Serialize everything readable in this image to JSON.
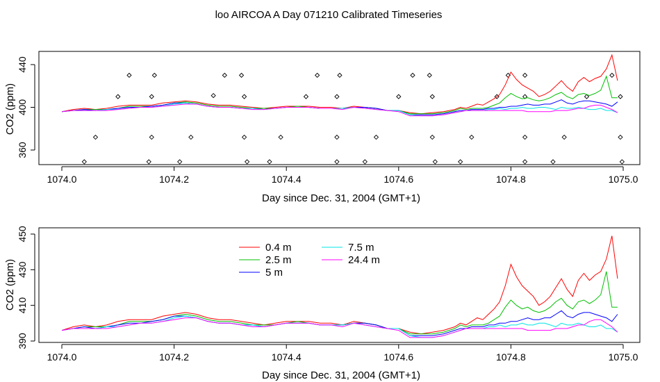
{
  "title": "loo AIRCOA A  Day 071210  Calibrated Timeseries",
  "colors": {
    "0.4 m": "#ff0000",
    "2.5 m": "#00c000",
    "5 m": "#0000ff",
    "7.5 m": "#00e5e5",
    "24.4 m": "#ff00ff"
  },
  "chart_data": [
    {
      "type": "line",
      "panel": "top",
      "xlabel": "Day since Dec. 31, 2004 (GMT+1)",
      "ylabel": "CO2 (ppm)",
      "xlim": [
        1074.0,
        1075.0
      ],
      "ylim": [
        346,
        452
      ],
      "xticks": [
        "1074.0",
        "1074.2",
        "1074.4",
        "1074.6",
        "1074.8",
        "1075.0"
      ],
      "yticks": [
        "360",
        "400",
        "440"
      ],
      "points": [
        [
          1074.04,
          349
        ],
        [
          1074.06,
          372
        ],
        [
          1074.1,
          410
        ],
        [
          1074.12,
          430
        ],
        [
          1074.155,
          349
        ],
        [
          1074.16,
          372
        ],
        [
          1074.16,
          410
        ],
        [
          1074.165,
          430
        ],
        [
          1074.21,
          349
        ],
        [
          1074.23,
          372
        ],
        [
          1074.27,
          411
        ],
        [
          1074.29,
          430
        ],
        [
          1074.32,
          430
        ],
        [
          1074.325,
          410
        ],
        [
          1074.325,
          372
        ],
        [
          1074.33,
          349
        ],
        [
          1074.37,
          349
        ],
        [
          1074.39,
          372
        ],
        [
          1074.435,
          410
        ],
        [
          1074.455,
          430
        ],
        [
          1074.49,
          349
        ],
        [
          1074.49,
          372
        ],
        [
          1074.49,
          410
        ],
        [
          1074.495,
          430
        ],
        [
          1074.54,
          349
        ],
        [
          1074.56,
          372
        ],
        [
          1074.6,
          410
        ],
        [
          1074.625,
          430
        ],
        [
          1074.655,
          430
        ],
        [
          1074.66,
          410
        ],
        [
          1074.66,
          372
        ],
        [
          1074.665,
          349
        ],
        [
          1074.71,
          349
        ],
        [
          1074.73,
          372
        ],
        [
          1074.775,
          410
        ],
        [
          1074.795,
          430
        ],
        [
          1074.825,
          430
        ],
        [
          1074.825,
          410
        ],
        [
          1074.825,
          372
        ],
        [
          1074.825,
          349
        ],
        [
          1074.875,
          349
        ],
        [
          1074.895,
          372
        ],
        [
          1074.935,
          410
        ],
        [
          1074.98,
          430
        ],
        [
          1074.995,
          410
        ],
        [
          1074.995,
          372
        ],
        [
          1074.998,
          349
        ]
      ],
      "x": [
        1074.0,
        1074.02,
        1074.04,
        1074.06,
        1074.08,
        1074.1,
        1074.12,
        1074.14,
        1074.16,
        1074.18,
        1074.2,
        1074.22,
        1074.24,
        1074.26,
        1074.28,
        1074.3,
        1074.32,
        1074.34,
        1074.36,
        1074.38,
        1074.4,
        1074.42,
        1074.44,
        1074.46,
        1074.48,
        1074.5,
        1074.52,
        1074.54,
        1074.56,
        1074.58,
        1074.6,
        1074.62,
        1074.64,
        1074.66,
        1074.68,
        1074.7,
        1074.71,
        1074.72,
        1074.73,
        1074.74,
        1074.75,
        1074.76,
        1074.77,
        1074.78,
        1074.79,
        1074.8,
        1074.81,
        1074.82,
        1074.83,
        1074.84,
        1074.85,
        1074.86,
        1074.87,
        1074.88,
        1074.89,
        1074.9,
        1074.91,
        1074.92,
        1074.93,
        1074.94,
        1074.95,
        1074.96,
        1074.97,
        1074.98,
        1074.99
      ],
      "series": [
        {
          "name": "0.4 m",
          "values": [
            396,
            398,
            399,
            398,
            399,
            401,
            402,
            402,
            402,
            404,
            405,
            406,
            405,
            403,
            402,
            402,
            401,
            400,
            399,
            400,
            401,
            401,
            401,
            400,
            400,
            399,
            401,
            400,
            399,
            397,
            397,
            395,
            394,
            395,
            396,
            398,
            400,
            399,
            401,
            403,
            402,
            405,
            408,
            412,
            421,
            433,
            426,
            421,
            418,
            415,
            410,
            412,
            415,
            420,
            425,
            419,
            415,
            424,
            428,
            424,
            427,
            429,
            436,
            449,
            425
          ]
        },
        {
          "name": "2.5 m",
          "values": [
            396,
            397,
            398,
            398,
            398,
            399,
            401,
            401,
            401,
            402,
            404,
            405,
            404,
            402,
            401,
            401,
            400,
            399,
            399,
            399,
            400,
            401,
            400,
            399,
            399,
            399,
            400,
            400,
            399,
            397,
            397,
            394,
            394,
            394,
            395,
            397,
            399,
            398,
            399,
            399,
            399,
            400,
            402,
            404,
            409,
            413,
            410,
            408,
            409,
            407,
            406,
            407,
            409,
            412,
            414,
            410,
            408,
            412,
            413,
            411,
            413,
            416,
            429,
            409,
            409
          ]
        },
        {
          "name": "5 m",
          "values": [
            396,
            397,
            398,
            397,
            398,
            399,
            400,
            400,
            401,
            402,
            404,
            404,
            403,
            401,
            400,
            400,
            399,
            399,
            398,
            399,
            400,
            400,
            400,
            399,
            399,
            399,
            400,
            400,
            399,
            397,
            397,
            393,
            393,
            393,
            394,
            396,
            397,
            397,
            398,
            398,
            398,
            399,
            399,
            400,
            400,
            401,
            401,
            402,
            403,
            402,
            402,
            403,
            403,
            405,
            407,
            404,
            403,
            405,
            406,
            406,
            405,
            404,
            403,
            401,
            405
          ]
        },
        {
          "name": "7.5 m",
          "values": [
            396,
            397,
            397,
            397,
            398,
            398,
            399,
            400,
            400,
            401,
            403,
            404,
            403,
            401,
            400,
            400,
            399,
            399,
            398,
            399,
            400,
            400,
            400,
            399,
            399,
            399,
            400,
            399,
            398,
            397,
            397,
            393,
            392,
            392,
            393,
            395,
            396,
            397,
            397,
            397,
            397,
            398,
            398,
            399,
            398,
            399,
            399,
            400,
            399,
            399,
            400,
            400,
            399,
            398,
            400,
            399,
            399,
            400,
            399,
            398,
            398,
            399,
            397,
            397,
            395
          ]
        },
        {
          "name": "24.4 m",
          "values": [
            396,
            397,
            397,
            397,
            397,
            398,
            399,
            400,
            400,
            401,
            402,
            403,
            403,
            401,
            400,
            400,
            399,
            398,
            398,
            399,
            400,
            400,
            400,
            399,
            399,
            398,
            400,
            399,
            398,
            397,
            396,
            392,
            392,
            392,
            393,
            395,
            396,
            397,
            397,
            397,
            397,
            397,
            397,
            397,
            397,
            397,
            397,
            397,
            396,
            396,
            396,
            396,
            396,
            397,
            397,
            397,
            398,
            399,
            399,
            401,
            402,
            402,
            400,
            398,
            395
          ]
        }
      ]
    },
    {
      "type": "line",
      "panel": "bottom",
      "xlabel": "Day since Dec. 31, 2004 (GMT+1)",
      "ylabel": "CO2 (ppm)",
      "xlim": [
        1074.0,
        1075.0
      ],
      "ylim": [
        389,
        452
      ],
      "xticks": [
        "1074.0",
        "1074.2",
        "1074.4",
        "1074.6",
        "1074.8",
        "1075.0"
      ],
      "yticks": [
        "390",
        "410",
        "430",
        "450"
      ],
      "legend": {
        "placement": "top-left",
        "entries": [
          "0.4 m",
          "2.5 m",
          "5 m",
          "7.5 m",
          "24.4 m"
        ]
      }
    }
  ]
}
